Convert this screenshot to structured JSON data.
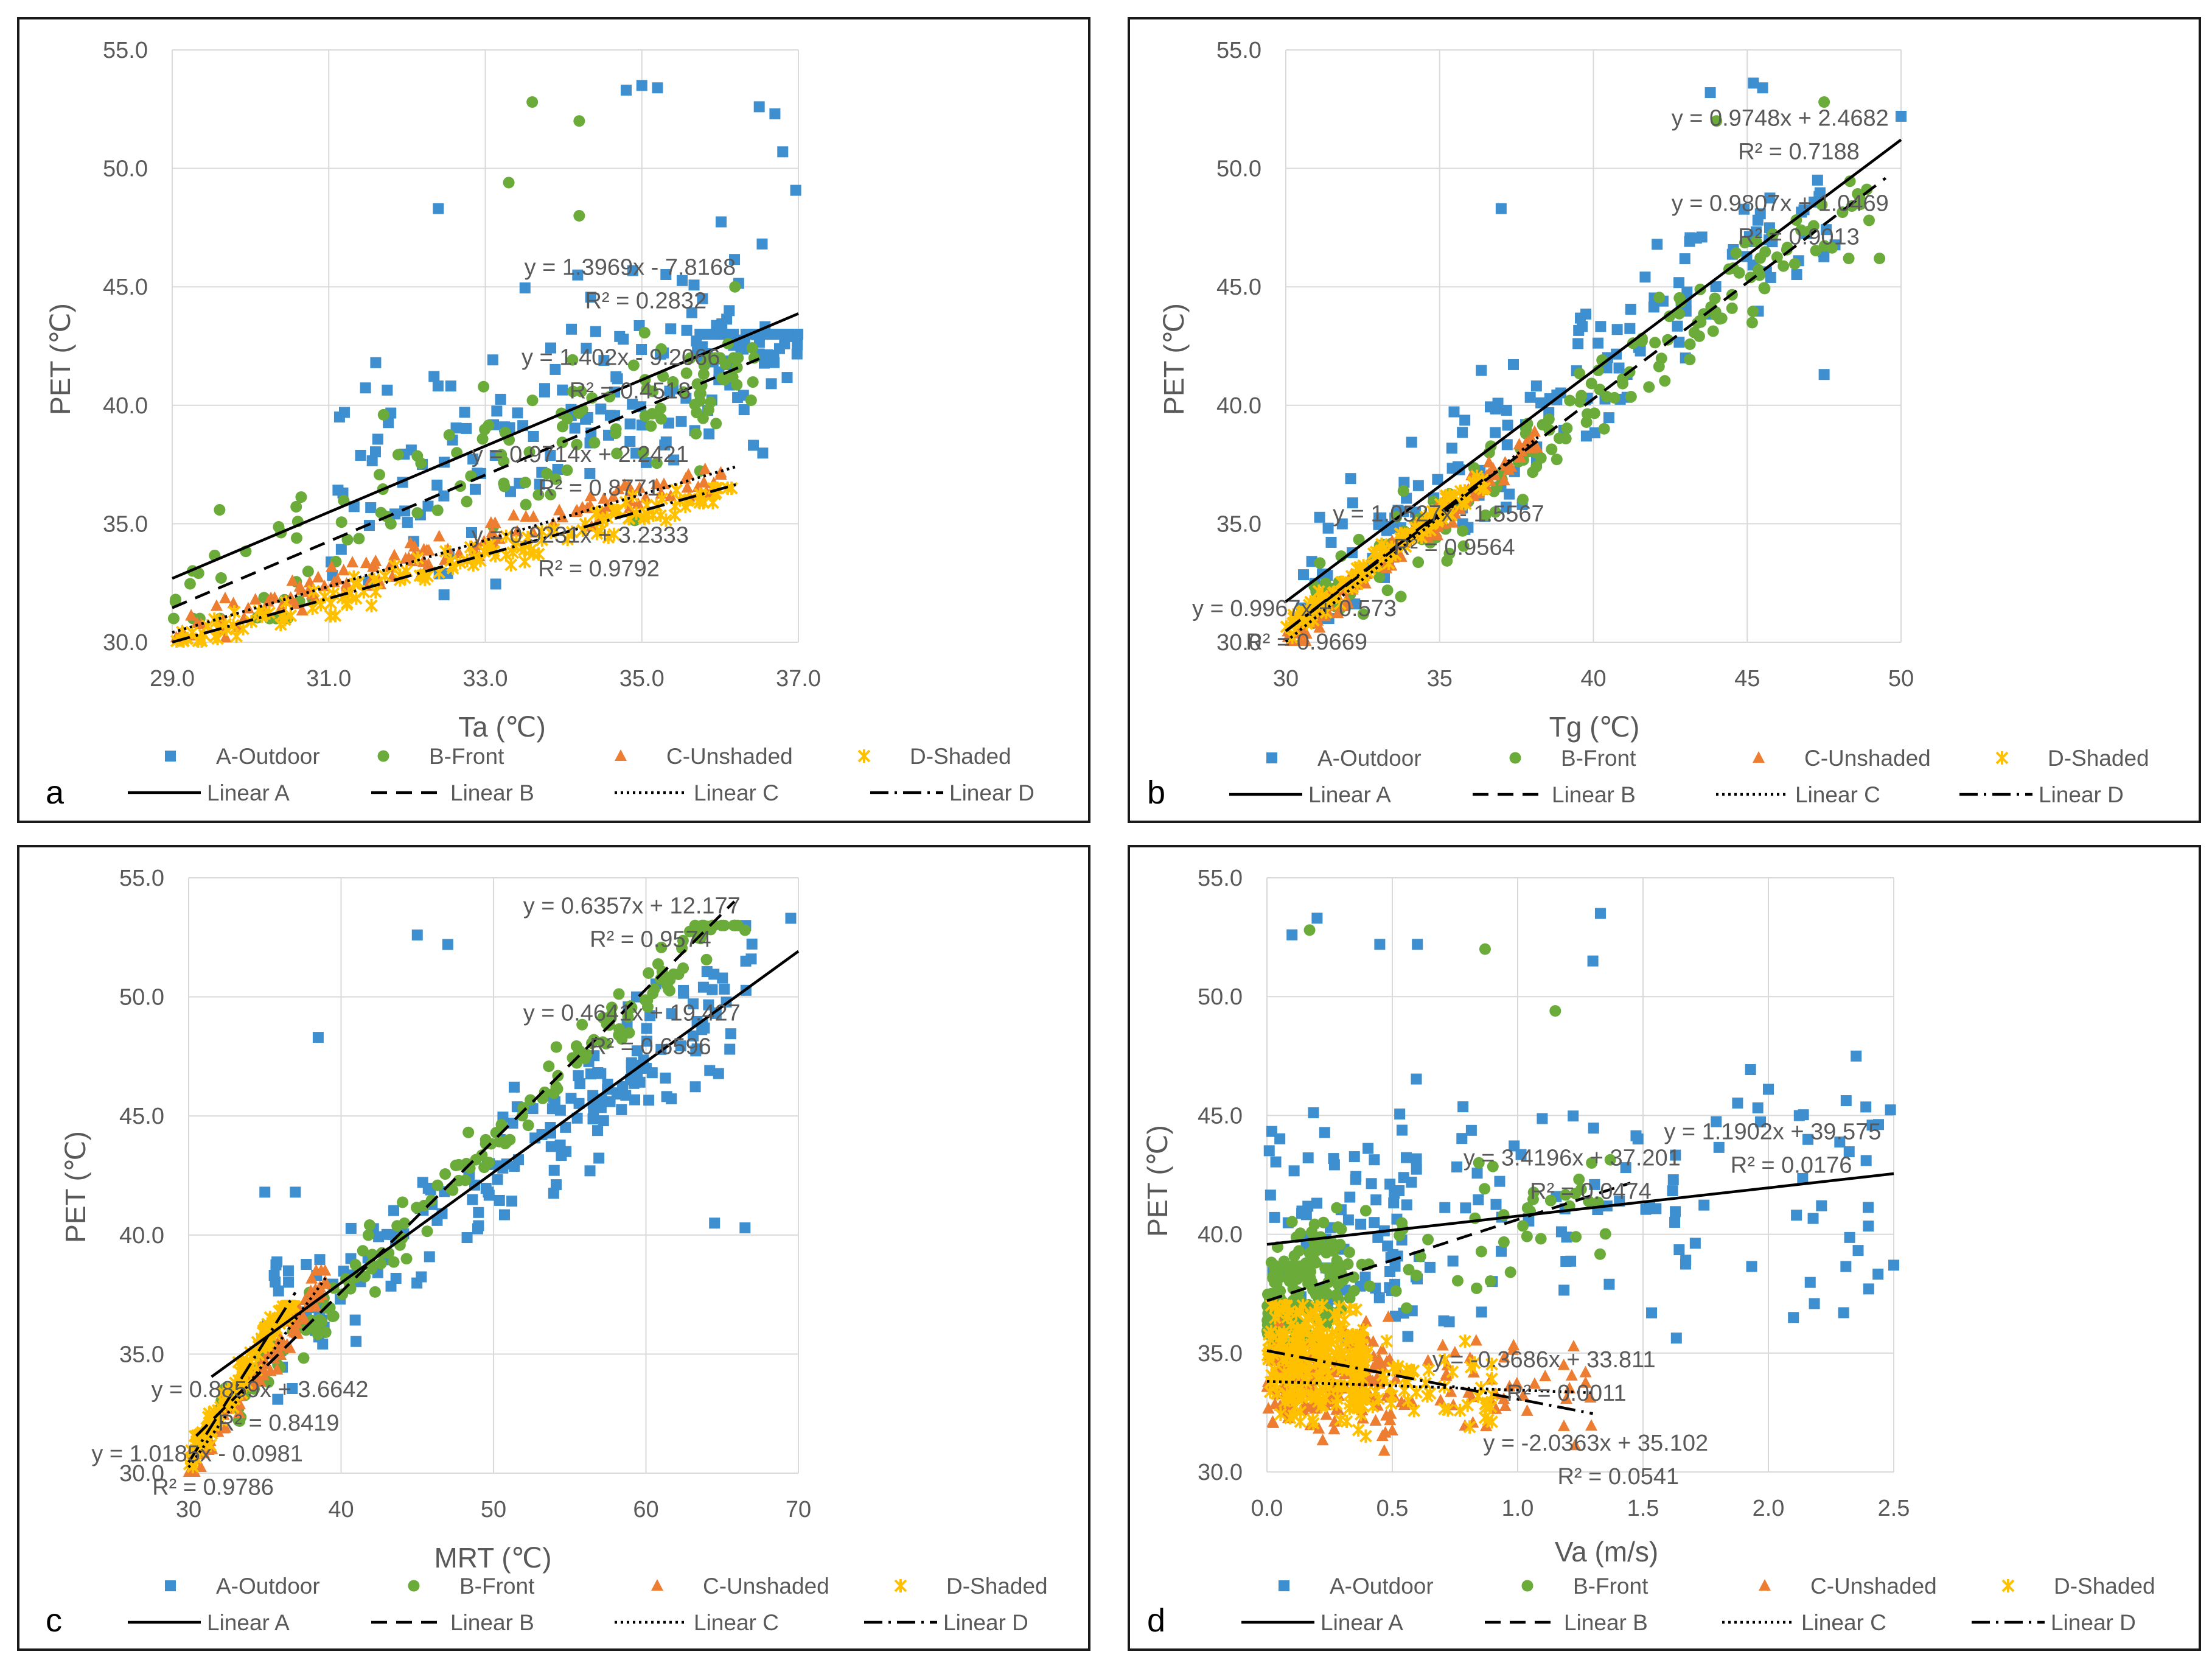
{
  "figure": {
    "colors": {
      "A": "#3d8fcf",
      "B": "#6aab3a",
      "C": "#ec7d31",
      "D": "#ffc000",
      "line": "#000000",
      "grid": "#d9d9d9",
      "text": "#595959"
    },
    "series_names": [
      "A-Outdoor",
      "B-Front",
      "C-Unshaded",
      "D-Shaded"
    ],
    "trend_names": [
      "Linear A",
      "Linear B",
      "Linear C",
      "Linear D"
    ]
  },
  "chart_data": [
    {
      "type": "scatter",
      "panel": "a",
      "xlabel": "Ta (℃)",
      "ylabel": "PET (℃)",
      "xlim": [
        29.0,
        37.0
      ],
      "ylim": [
        30.0,
        55.0
      ],
      "xticks": [
        "29.0",
        "31.0",
        "33.0",
        "35.0",
        "37.0"
      ],
      "yticks": [
        "30.0",
        "35.0",
        "40.0",
        "45.0",
        "50.0",
        "55.0"
      ],
      "fits": [
        {
          "series": "A",
          "slope": 1.3969,
          "intercept": -7.8168,
          "x_range": [
            29.0,
            37.0
          ],
          "eq": "y = 1.3969x - 7.8168",
          "r2": "R² = 0.2832"
        },
        {
          "series": "B",
          "slope": 1.402,
          "intercept": -9.2066,
          "x_range": [
            29.0,
            36.5
          ],
          "eq": "y = 1.402x - 9.2066",
          "r2": "R² = 0.4518"
        },
        {
          "series": "C",
          "slope": 0.9714,
          "intercept": 2.2421,
          "x_range": [
            29.0,
            36.2
          ],
          "eq": "y = 0.9714x + 2.2421",
          "r2": "R² = 0.8771"
        },
        {
          "series": "D",
          "slope": 0.9231,
          "intercept": 3.2333,
          "x_range": [
            29.0,
            36.2
          ],
          "eq": "y = 0.9231x + 3.2333",
          "r2": "R² = 0.9792"
        }
      ],
      "clusters": [
        {
          "series": "A",
          "n": 150,
          "x": [
            31.0,
            37.0
          ],
          "y": [
            32.0,
            53.5
          ],
          "noise": 3.5
        },
        {
          "series": "A",
          "n": 50,
          "x": [
            35.5,
            37.0
          ],
          "y": [
            38.0,
            43.0
          ],
          "noise": 1.5
        },
        {
          "series": "B",
          "n": 110,
          "x": [
            29.0,
            36.5
          ],
          "y": [
            31.0,
            45.0
          ],
          "noise": 2.5
        },
        {
          "series": "B",
          "n": 30,
          "x": [
            35.0,
            36.5
          ],
          "y": [
            36.0,
            42.0
          ],
          "noise": 1.5
        },
        {
          "series": "C",
          "n": 130,
          "x": [
            29.0,
            36.2
          ],
          "y": [
            30.2,
            37.3
          ],
          "noise": 0.6
        },
        {
          "series": "D",
          "n": 150,
          "x": [
            29.0,
            36.2
          ],
          "y": [
            30.0,
            36.5
          ],
          "noise": 0.5
        }
      ],
      "points": [
        {
          "series": "B",
          "x": 33.6,
          "y": 52.8
        },
        {
          "series": "B",
          "x": 34.2,
          "y": 52.0
        },
        {
          "series": "A",
          "x": 34.8,
          "y": 53.3
        },
        {
          "series": "A",
          "x": 35.0,
          "y": 53.5
        },
        {
          "series": "A",
          "x": 35.2,
          "y": 53.4
        },
        {
          "series": "A",
          "x": 36.5,
          "y": 52.6
        },
        {
          "series": "A",
          "x": 36.7,
          "y": 52.3
        },
        {
          "series": "A",
          "x": 36.8,
          "y": 50.7
        },
        {
          "series": "A",
          "x": 32.4,
          "y": 48.3
        },
        {
          "series": "B",
          "x": 33.3,
          "y": 49.4
        },
        {
          "series": "B",
          "x": 34.2,
          "y": 48.0
        },
        {
          "series": "A",
          "x": 31.2,
          "y": 39.7
        },
        {
          "series": "A",
          "x": 31.6,
          "y": 41.8
        },
        {
          "series": "B",
          "x": 31.7,
          "y": 39.6
        }
      ],
      "labels": [
        {
          "fit": 0,
          "x": 36.2,
          "y": 45.5
        },
        {
          "fit": 1,
          "x": 36.0,
          "y": 41.7
        },
        {
          "fit": 2,
          "x": 35.6,
          "y": 37.6
        },
        {
          "fit": 3,
          "x": 35.6,
          "y": 34.2
        }
      ]
    },
    {
      "type": "scatter",
      "panel": "b",
      "xlabel": "Tg (℃)",
      "ylabel": "PET (℃)",
      "xlim": [
        30,
        50
      ],
      "ylim": [
        30.0,
        55.0
      ],
      "xticks": [
        "30",
        "35",
        "40",
        "45",
        "50"
      ],
      "yticks": [
        "30.0",
        "35.0",
        "40.0",
        "45.0",
        "50.0",
        "55.0"
      ],
      "fits": [
        {
          "series": "A",
          "slope": 0.9748,
          "intercept": 2.4682,
          "x_range": [
            30,
            50
          ],
          "eq": "y = 0.9748x + 2.4682",
          "r2": "R² = 0.7188"
        },
        {
          "series": "B",
          "slope": 0.9807,
          "intercept": 1.0469,
          "x_range": [
            30,
            49.5
          ],
          "eq": "y = 0.9807x + 1.0469",
          "r2": "R² = 0.9013"
        },
        {
          "series": "C",
          "slope": 1.0527,
          "intercept": -1.5567,
          "x_range": [
            30,
            38.2
          ],
          "eq": "y = 1.0527x - 1.5567",
          "r2": "R² = 0.9564"
        },
        {
          "series": "D",
          "slope": 0.9967,
          "intercept": 0.573,
          "x_range": [
            30,
            36.5
          ],
          "eq": "y = 0.9967x + 0.573",
          "r2": "R² = 0.9669"
        }
      ],
      "clusters": [
        {
          "series": "A",
          "n": 170,
          "x": [
            30.5,
            48.0
          ],
          "y": [
            31.0,
            53.0
          ],
          "noise": 2.2,
          "slope": 0.9748,
          "intercept": 2.4682
        },
        {
          "series": "B",
          "n": 170,
          "x": [
            30.5,
            49.0
          ],
          "y": [
            30.5,
            52.0
          ],
          "noise": 1.4,
          "slope": 0.9807,
          "intercept": 1.0469
        },
        {
          "series": "C",
          "n": 130,
          "x": [
            30.0,
            38.2
          ],
          "y": [
            30.0,
            39.0
          ],
          "noise": 0.5,
          "slope": 1.0527,
          "intercept": -1.5567
        },
        {
          "series": "D",
          "n": 150,
          "x": [
            30.0,
            36.5
          ],
          "y": [
            30.0,
            37.0
          ],
          "noise": 0.4,
          "slope": 0.9967,
          "intercept": 0.573
        }
      ],
      "points": [
        {
          "series": "A",
          "x": 45.2,
          "y": 53.6
        },
        {
          "series": "A",
          "x": 45.5,
          "y": 53.4
        },
        {
          "series": "A",
          "x": 43.8,
          "y": 53.2
        },
        {
          "series": "A",
          "x": 50.0,
          "y": 52.2
        },
        {
          "series": "B",
          "x": 47.5,
          "y": 52.8
        },
        {
          "series": "B",
          "x": 44.0,
          "y": 52.0
        },
        {
          "series": "A",
          "x": 37.0,
          "y": 48.3
        },
        {
          "series": "B",
          "x": 49.3,
          "y": 46.2
        },
        {
          "series": "B",
          "x": 48.3,
          "y": 46.2
        },
        {
          "series": "A",
          "x": 47.5,
          "y": 41.3
        }
      ],
      "labels": [
        {
          "fit": 0,
          "x": 49.6,
          "y": 51.8
        },
        {
          "fit": 1,
          "x": 49.6,
          "y": 48.2
        },
        {
          "fit": 2,
          "x": 38.4,
          "y": 35.1
        },
        {
          "fit": 3,
          "x": 33.6,
          "y": 31.1
        }
      ]
    },
    {
      "type": "scatter",
      "panel": "c",
      "xlabel": "MRT (℃)",
      "ylabel": "PET (℃)",
      "xlim": [
        30,
        70
      ],
      "ylim": [
        30.0,
        55.0
      ],
      "xticks": [
        "30",
        "40",
        "50",
        "60",
        "70"
      ],
      "yticks": [
        "30.0",
        "35.0",
        "40.0",
        "45.0",
        "50.0",
        "55.0"
      ],
      "fits": [
        {
          "series": "A",
          "slope": 0.4641,
          "intercept": 19.427,
          "x_range": [
            31.5,
            70
          ],
          "eq": "y = 0.4641x + 19.427",
          "r2": "R² = 0.6596"
        },
        {
          "series": "B",
          "slope": 0.6357,
          "intercept": 12.177,
          "x_range": [
            30.5,
            65.8
          ],
          "eq": "y = 0.6357x + 12.177",
          "r2": "R² = 0.9574"
        },
        {
          "series": "C",
          "slope": 0.8859,
          "intercept": 3.6642,
          "x_range": [
            30,
            39
          ],
          "eq": "y = 0.8859x + 3.6642",
          "r2": "R² = 0.8419"
        },
        {
          "series": "D",
          "slope": 1.0185,
          "intercept": -0.0981,
          "x_range": [
            30,
            37
          ],
          "eq": "y = 1.0185x - 0.0981",
          "r2": "R² = 0.9786"
        }
      ],
      "clusters": [
        {
          "series": "A",
          "n": 190,
          "x": [
            35.0,
            67.0
          ],
          "y": [
            33.0,
            53.0
          ],
          "noise": 2.2,
          "slope": 0.4641,
          "intercept": 19.427
        },
        {
          "series": "B",
          "n": 180,
          "x": [
            32.0,
            66.5
          ],
          "y": [
            30.5,
            53.0
          ],
          "noise": 0.9,
          "slope": 0.6357,
          "intercept": 12.177
        },
        {
          "series": "C",
          "n": 130,
          "x": [
            30.0,
            39.0
          ],
          "y": [
            30.0,
            38.5
          ],
          "noise": 0.6,
          "slope": 0.8859,
          "intercept": 3.6642
        },
        {
          "series": "D",
          "n": 150,
          "x": [
            30.0,
            37.0
          ],
          "y": [
            30.0,
            37.0
          ],
          "noise": 0.5,
          "slope": 1.0185,
          "intercept": -0.0981
        }
      ],
      "points": [
        {
          "series": "A",
          "x": 45.0,
          "y": 52.6
        },
        {
          "series": "A",
          "x": 47.0,
          "y": 52.2
        },
        {
          "series": "A",
          "x": 69.5,
          "y": 53.3
        },
        {
          "series": "A",
          "x": 38.5,
          "y": 48.3
        },
        {
          "series": "B",
          "x": 66.5,
          "y": 52.8
        },
        {
          "series": "A",
          "x": 66.5,
          "y": 40.3
        },
        {
          "series": "A",
          "x": 64.5,
          "y": 40.5
        },
        {
          "series": "A",
          "x": 35.0,
          "y": 41.8
        },
        {
          "series": "A",
          "x": 37.0,
          "y": 41.8
        }
      ],
      "labels": [
        {
          "fit": 0,
          "x": 66.2,
          "y": 49.0
        },
        {
          "fit": 1,
          "x": 66.2,
          "y": 53.5
        },
        {
          "fit": 2,
          "x": 41.8,
          "y": 33.2
        },
        {
          "fit": 3,
          "x": 37.5,
          "y": 30.5
        }
      ]
    },
    {
      "type": "scatter",
      "panel": "d",
      "xlabel": "Va (m/s)",
      "ylabel": "PET (℃)",
      "xlim": [
        0.0,
        2.5
      ],
      "ylim": [
        30.0,
        55.0
      ],
      "xticks": [
        "0.0",
        "0.5",
        "1.0",
        "1.5",
        "2.0",
        "2.5"
      ],
      "yticks": [
        "30.0",
        "35.0",
        "40.0",
        "45.0",
        "50.0",
        "55.0"
      ],
      "fits": [
        {
          "series": "A",
          "slope": 1.1902,
          "intercept": 39.575,
          "x_range": [
            0.0,
            2.5
          ],
          "eq": "y = 1.1902x + 39.575",
          "r2": "R² = 0.0176"
        },
        {
          "series": "B",
          "slope": 3.4196,
          "intercept": 37.201,
          "x_range": [
            0.0,
            1.45
          ],
          "eq": "y = 3.4196x + 37.201",
          "r2": "R² = 0.0474"
        },
        {
          "series": "C",
          "slope": -0.3686,
          "intercept": 33.811,
          "x_range": [
            0.0,
            1.3
          ],
          "eq": "y = -0.3686x + 33.811",
          "r2": "R² = 0.0011"
        },
        {
          "series": "D",
          "slope": -2.0363,
          "intercept": 35.102,
          "x_range": [
            0.0,
            1.3
          ],
          "eq": "y = -2.0363x + 35.102",
          "r2": "R² = 0.0541"
        }
      ],
      "clusters": [
        {
          "series": "A",
          "n": 90,
          "x": [
            0.0,
            0.6
          ],
          "y": [
            31.0,
            50.0
          ],
          "noise": 4.0
        },
        {
          "series": "A",
          "n": 90,
          "x": [
            0.5,
            2.5
          ],
          "y": [
            31.0,
            50.0
          ],
          "noise": 4.0
        },
        {
          "series": "B",
          "n": 170,
          "x": [
            0.0,
            0.3
          ],
          "y": [
            35.5,
            44.0
          ],
          "noise": 2.0
        },
        {
          "series": "B",
          "n": 50,
          "x": [
            0.3,
            1.4
          ],
          "y": [
            36.0,
            43.5
          ],
          "noise": 2.0
        },
        {
          "series": "C",
          "n": 180,
          "x": [
            0.0,
            0.5
          ],
          "y": [
            30.0,
            37.5
          ],
          "noise": 1.8
        },
        {
          "series": "C",
          "n": 50,
          "x": [
            0.5,
            1.3
          ],
          "y": [
            30.5,
            36.5
          ],
          "noise": 1.5
        },
        {
          "series": "D",
          "n": 260,
          "x": [
            0.0,
            0.4
          ],
          "y": [
            30.0,
            37.0
          ],
          "noise": 1.8
        },
        {
          "series": "D",
          "n": 50,
          "x": [
            0.4,
            0.9
          ],
          "y": [
            30.5,
            35.5
          ],
          "noise": 1.5
        }
      ],
      "points": [
        {
          "series": "A",
          "x": 0.1,
          "y": 52.6
        },
        {
          "series": "A",
          "x": 0.2,
          "y": 53.3
        },
        {
          "series": "B",
          "x": 0.17,
          "y": 52.8
        },
        {
          "series": "A",
          "x": 0.45,
          "y": 52.2
        },
        {
          "series": "A",
          "x": 0.6,
          "y": 52.2
        },
        {
          "series": "A",
          "x": 1.33,
          "y": 53.5
        },
        {
          "series": "B",
          "x": 0.87,
          "y": 52.0
        },
        {
          "series": "A",
          "x": 1.3,
          "y": 51.5
        },
        {
          "series": "B",
          "x": 1.15,
          "y": 49.4
        },
        {
          "series": "A",
          "x": 2.35,
          "y": 47.5
        },
        {
          "series": "A",
          "x": 2.0,
          "y": 46.1
        },
        {
          "series": "A",
          "x": 2.5,
          "y": 38.7
        },
        {
          "series": "A",
          "x": 2.4,
          "y": 37.7
        },
        {
          "series": "A",
          "x": 2.1,
          "y": 36.5
        },
        {
          "series": "A",
          "x": 2.3,
          "y": 36.7
        }
      ],
      "labels": [
        {
          "fit": 0,
          "x": 2.45,
          "y": 44.0
        },
        {
          "fit": 1,
          "x": 1.65,
          "y": 42.9
        },
        {
          "fit": 2,
          "x": 1.55,
          "y": 34.4
        },
        {
          "fit": 3,
          "x": 1.76,
          "y": 30.9
        }
      ]
    }
  ]
}
